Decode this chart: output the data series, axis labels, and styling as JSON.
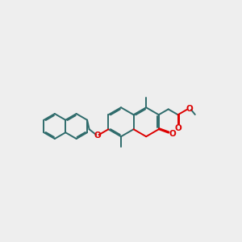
{
  "bg_color": "#eeeeee",
  "bond_color": "#2e6b6b",
  "oxygen_color": "#dd0000",
  "lw": 1.4,
  "dbo": 0.055,
  "figsize": [
    3.0,
    3.0
  ],
  "dpi": 100,
  "xlim": [
    0,
    12
  ],
  "ylim": [
    2,
    8.5
  ]
}
